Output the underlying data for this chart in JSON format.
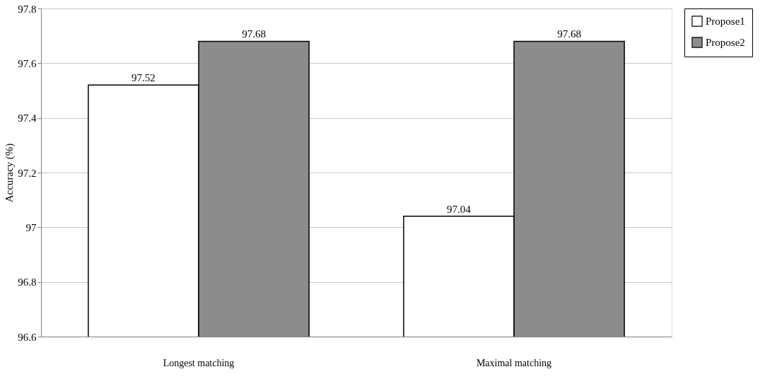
{
  "chart_data": {
    "type": "bar",
    "ylabel": "Accuracy (%)",
    "categories": [
      "Longest matching",
      "Maximal matching"
    ],
    "series": [
      {
        "name": "Propose1",
        "color": "#ffffff",
        "values": [
          97.52,
          97.04
        ]
      },
      {
        "name": "Propose2",
        "color": "#8c8c8c",
        "values": [
          97.68,
          97.68
        ]
      }
    ],
    "ylim": [
      96.6,
      97.8
    ],
    "yticks": [
      96.6,
      96.8,
      97,
      97.2,
      97.4,
      97.6,
      97.8
    ],
    "grid": "y",
    "legend": "right",
    "data_labels": true
  }
}
